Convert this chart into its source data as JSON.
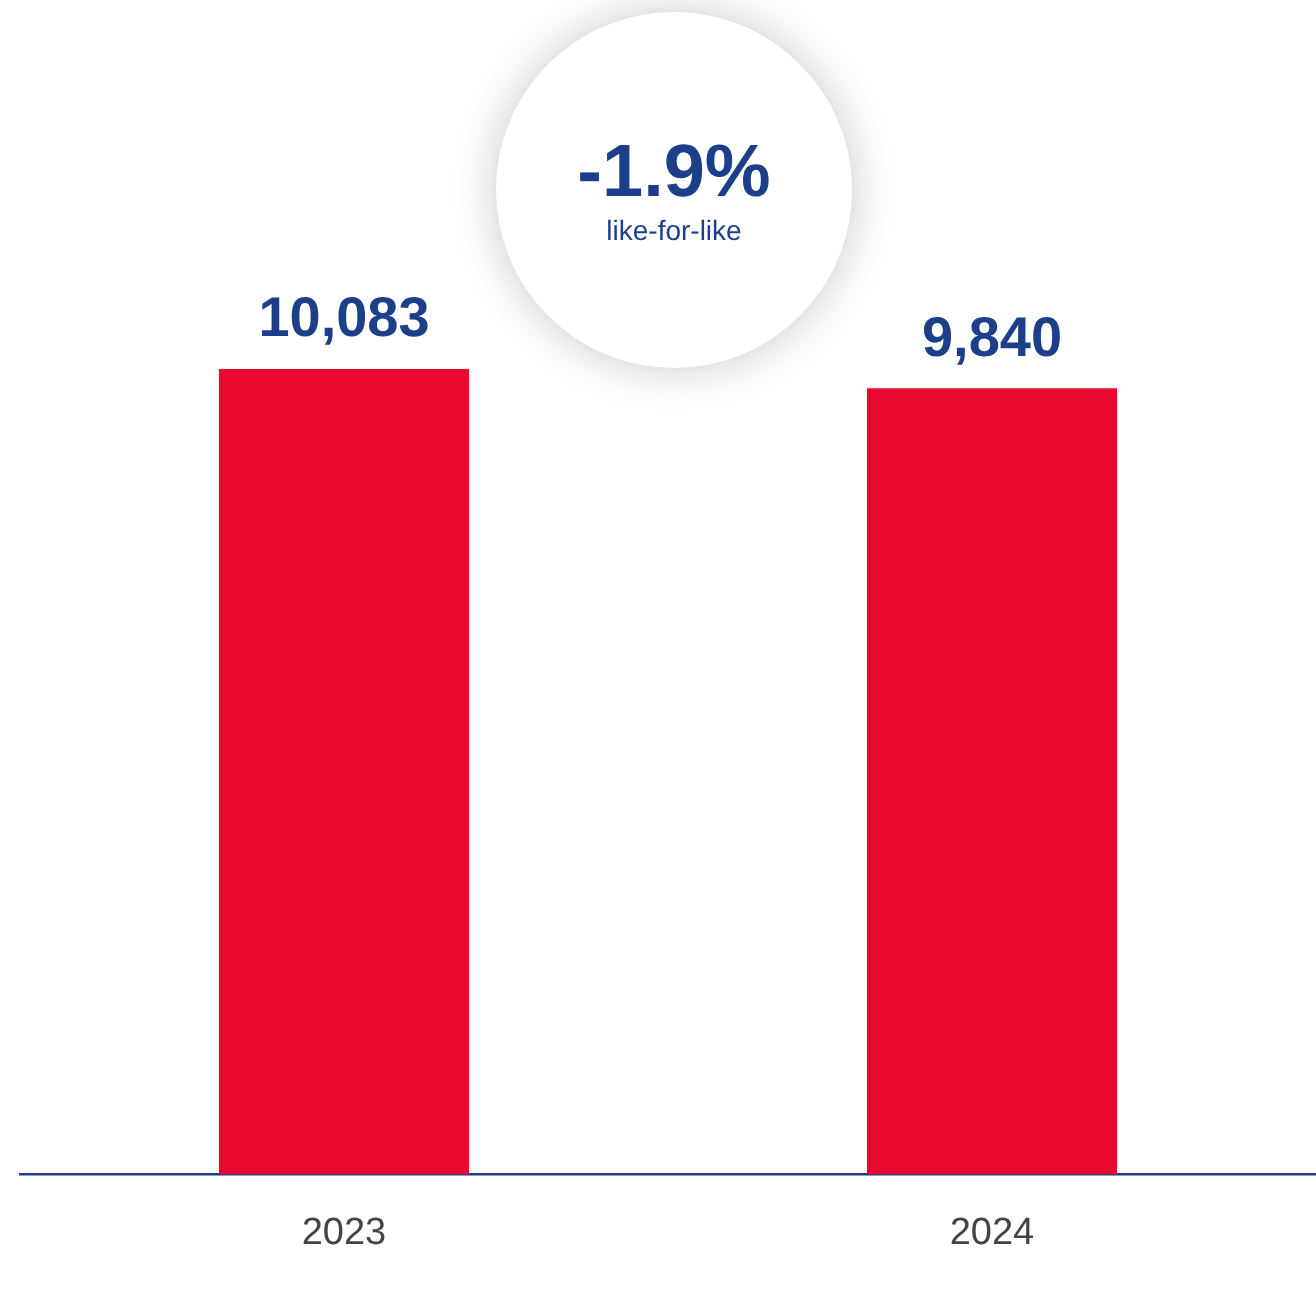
{
  "chart_data": {
    "type": "bar",
    "categories": [
      "2023",
      "2024"
    ],
    "values": [
      10083,
      9840
    ],
    "value_labels": [
      "10,083",
      "9,840"
    ],
    "color": "#ea0a30",
    "annotations": [
      "-1.9%",
      "like-for-like"
    ],
    "grid": false,
    "legend": false,
    "tick_labels": "x"
  }
}
